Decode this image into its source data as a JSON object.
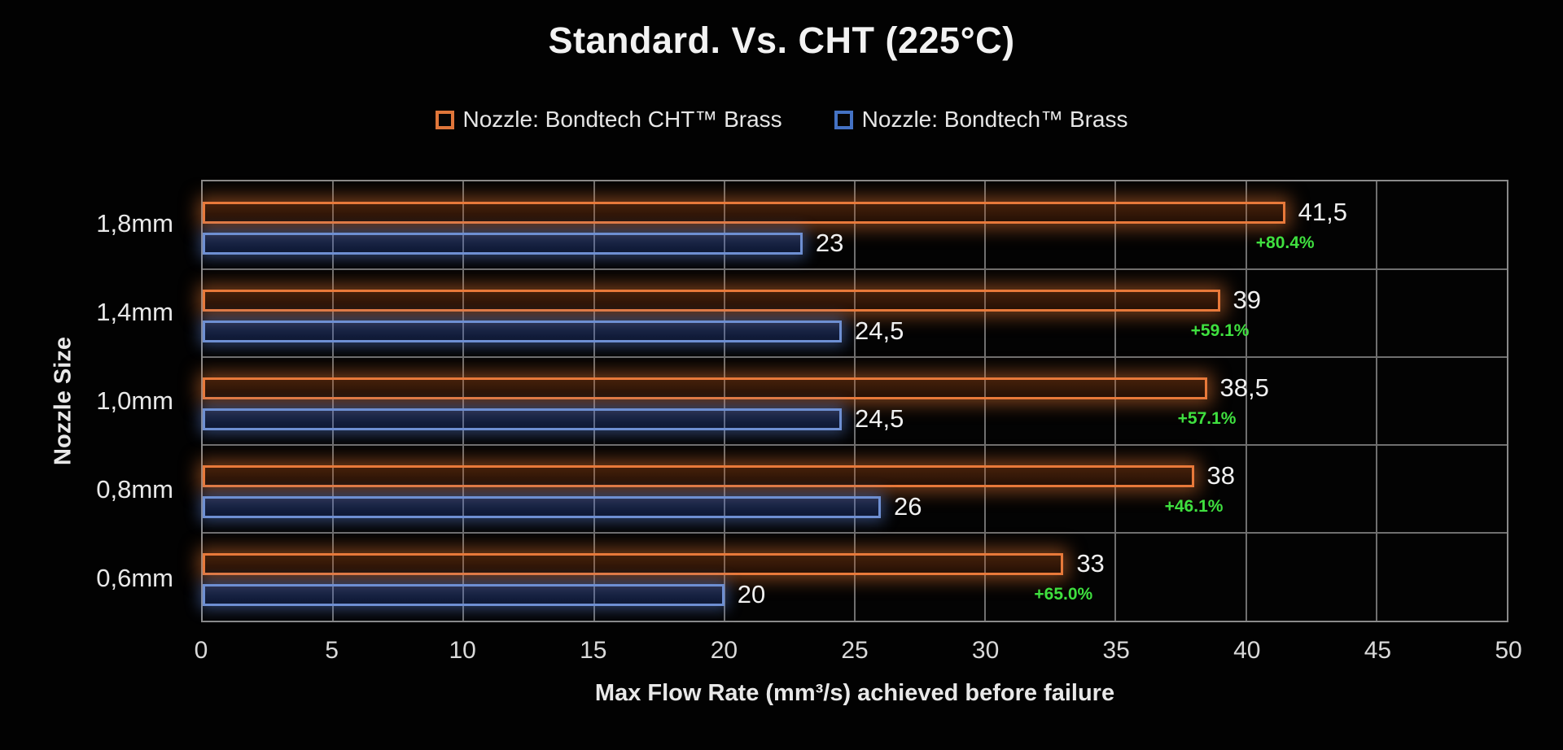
{
  "title": "Standard. Vs. CHT (225°C)",
  "legend": [
    {
      "label": "Nozzle: Bondtech CHT™ Brass",
      "color": "#E0763A"
    },
    {
      "label": "Nozzle: Bondtech™ Brass",
      "color": "#4472C4"
    }
  ],
  "chart_data": {
    "type": "bar",
    "orientation": "horizontal",
    "title": "Standard. Vs. CHT (225°C)",
    "categories": [
      "1,8mm",
      "1,4mm",
      "1,0mm",
      "0,8mm",
      "0,6mm"
    ],
    "series": [
      {
        "name": "Nozzle: Bondtech CHT™ Brass",
        "values": [
          41.5,
          39,
          38.5,
          38,
          33
        ],
        "labels": [
          "41,5",
          "39",
          "38,5",
          "38",
          "33"
        ]
      },
      {
        "name": "Nozzle: Bondtech™ Brass",
        "values": [
          23,
          24.5,
          24.5,
          26,
          20
        ],
        "labels": [
          "23",
          "24,5",
          "24,5",
          "26",
          "20"
        ]
      }
    ],
    "pct_gain": [
      "+80.4%",
      "+59.1%",
      "+57.1%",
      "+46.1%",
      "+65.0%"
    ],
    "xlabel": "Max Flow Rate (mm³/s) achieved before failure",
    "ylabel": "Nozzle Size",
    "xlim": [
      0,
      50
    ],
    "xticks": [
      0,
      5,
      10,
      15,
      20,
      25,
      30,
      35,
      40,
      45,
      50
    ],
    "grid": true,
    "legend_position": "top"
  },
  "colors": {
    "background": "#020202",
    "grid": "#6f6f6f",
    "plot_border": "#8a8a8a",
    "cht_border": "#E8793A",
    "cht_fill_top": "rgba(205,92,24,0.32)",
    "cht_fill_bottom": "rgba(150,60,12,0.24)",
    "cht_glow": "rgba(232,120,50,0.50)",
    "std_border": "#6E8FD2",
    "std_fill_top": "rgba(75,120,230,0.34)",
    "std_fill_bottom": "rgba(45,80,180,0.28)",
    "std_glow": "rgba(100,140,230,0.45)",
    "value_text": "#f0f0f0",
    "pct_text": "#3FE03F",
    "tick_text": "#d9d9d9"
  }
}
